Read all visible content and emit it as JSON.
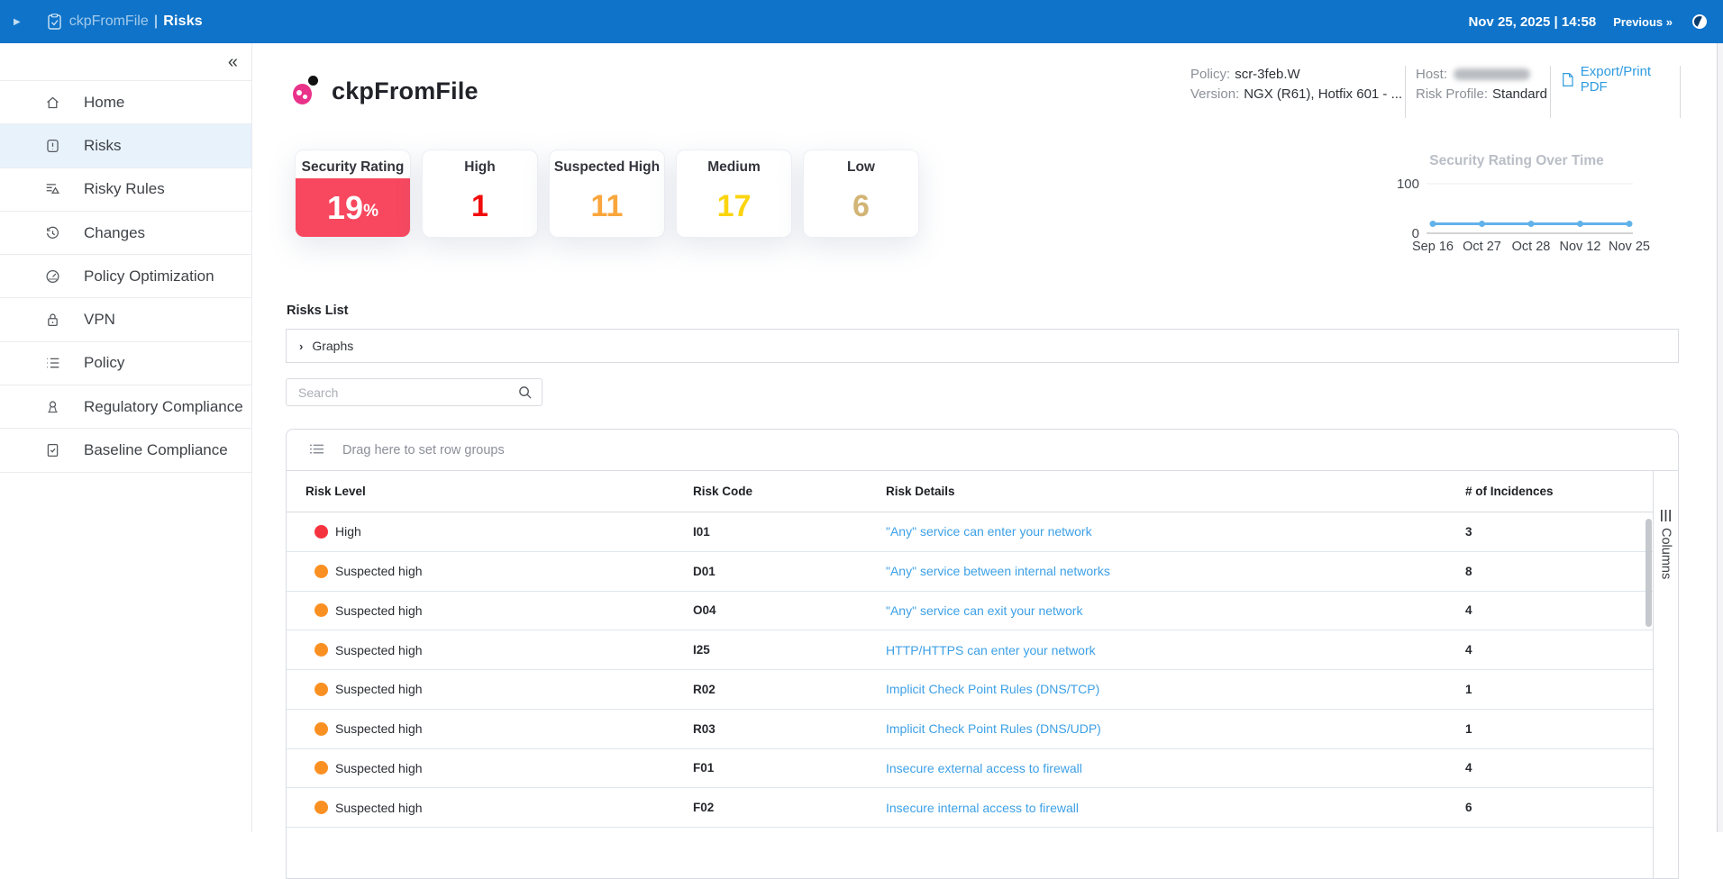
{
  "topbar": {
    "breadcrumb_app": "ckpFromFile",
    "breadcrumb_sep": "|",
    "breadcrumb_page": "Risks",
    "datetime": "Nov 25, 2025 | 14:58",
    "previous_label": "Previous »"
  },
  "sidebar": {
    "collapse_label": "«",
    "items": [
      {
        "label": "Home",
        "icon": "home-icon",
        "active": false
      },
      {
        "label": "Risks",
        "icon": "risks-icon",
        "active": true
      },
      {
        "label": "Risky Rules",
        "icon": "risky-rules-icon",
        "active": false
      },
      {
        "label": "Changes",
        "icon": "changes-icon",
        "active": false
      },
      {
        "label": "Policy Optimization",
        "icon": "policy-optimization-icon",
        "active": false
      },
      {
        "label": "VPN",
        "icon": "vpn-icon",
        "active": false
      },
      {
        "label": "Policy",
        "icon": "policy-icon",
        "active": false
      },
      {
        "label": "Regulatory Compliance",
        "icon": "regulatory-compliance-icon",
        "active": false
      },
      {
        "label": "Baseline Compliance",
        "icon": "baseline-compliance-icon",
        "active": false
      }
    ]
  },
  "header": {
    "title": "ckpFromFile",
    "policy_label": "Policy:",
    "policy_value": "scr-3feb.W",
    "version_label": "Version:",
    "version_value": "NGX (R61), Hotfix 601 - ...",
    "host_label": "Host:",
    "risk_profile_label": "Risk Profile:",
    "risk_profile_value": "Standard",
    "export_label": "Export/Print PDF"
  },
  "cards": [
    {
      "label": "Security Rating",
      "value": "19",
      "suffix": "%",
      "type": "rating",
      "block_color": "#f7485f"
    },
    {
      "label": "High",
      "value": "1",
      "color": "#f10b0b"
    },
    {
      "label": "Suspected High",
      "value": "11",
      "color": "#f9a63c"
    },
    {
      "label": "Medium",
      "value": "17",
      "color": "#fbd40e"
    },
    {
      "label": "Low",
      "value": "6",
      "color": "#d2b475"
    }
  ],
  "chart_data": {
    "type": "line",
    "title": "Security Rating Over Time",
    "x": [
      "Sep 16",
      "Oct 27",
      "Oct 28",
      "Nov 12",
      "Nov 25"
    ],
    "values": [
      19,
      19,
      19,
      19,
      19
    ],
    "ylim": [
      0,
      100
    ],
    "yticks": [
      0,
      100
    ],
    "line_color": "#62b2ea",
    "grid": true,
    "legend": false
  },
  "risks_list": {
    "title": "Risks List",
    "graphs_label": "Graphs",
    "search_placeholder": "Search"
  },
  "table": {
    "drag_hint": "Drag here to set row groups",
    "columns_tool_label": "Columns",
    "headers": [
      "Risk Level",
      "Risk Code",
      "Risk Details",
      "# of Incidences"
    ],
    "level_colors": {
      "High": "#f5333f",
      "Suspected high": "#fb9022"
    },
    "rows": [
      {
        "level": "High",
        "code": "I01",
        "details": "\"Any\" service can enter your network",
        "incidences": "3"
      },
      {
        "level": "Suspected high",
        "code": "D01",
        "details": "\"Any\" service between internal networks",
        "incidences": "8"
      },
      {
        "level": "Suspected high",
        "code": "O04",
        "details": "\"Any\" service can exit your network",
        "incidences": "4"
      },
      {
        "level": "Suspected high",
        "code": "I25",
        "details": "HTTP/HTTPS can enter your network",
        "incidences": "4"
      },
      {
        "level": "Suspected high",
        "code": "R02",
        "details": "Implicit Check Point Rules (DNS/TCP)",
        "incidences": "1"
      },
      {
        "level": "Suspected high",
        "code": "R03",
        "details": "Implicit Check Point Rules (DNS/UDP)",
        "incidences": "1"
      },
      {
        "level": "Suspected high",
        "code": "F01",
        "details": "Insecure external access to firewall",
        "incidences": "4"
      },
      {
        "level": "Suspected high",
        "code": "F02",
        "details": "Insecure internal access to firewall",
        "incidences": "6"
      }
    ]
  }
}
